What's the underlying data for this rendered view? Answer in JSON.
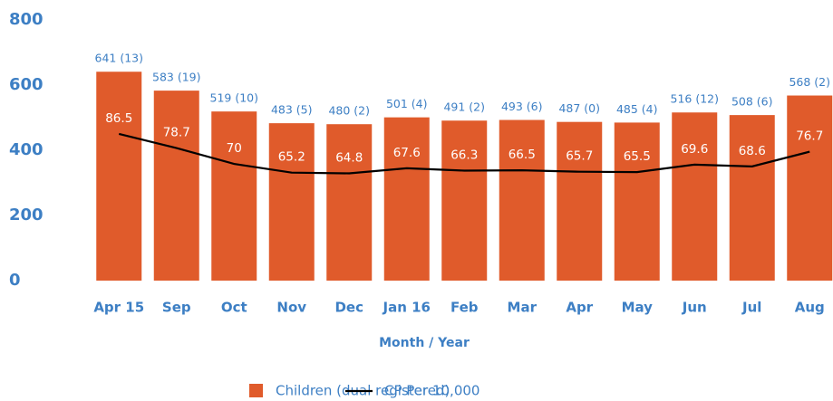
{
  "chart_data": {
    "type": "bar",
    "x_label": "Month / Year",
    "categories": [
      "Apr 15",
      "Sep",
      "Oct",
      "Nov",
      "Dec",
      "Jan 16",
      "Feb",
      "Mar",
      "Apr",
      "May",
      "Jun",
      "Jul",
      "Aug"
    ],
    "series": [
      {
        "name": "Children (dual registered)",
        "type": "bar",
        "color": "#e05b2b",
        "values": [
          641,
          583,
          519,
          483,
          480,
          501,
          491,
          493,
          487,
          485,
          516,
          508,
          568
        ],
        "value_labels": [
          "641 (13)",
          "583 (19)",
          "519 (10)",
          "483 (5)",
          "480 (2)",
          "501 (4)",
          "491 (2)",
          "493 (6)",
          "487 (0)",
          "485 (4)",
          "516 (12)",
          "508 (6)",
          "568 (2)"
        ]
      },
      {
        "name": "CP Per 10,000",
        "type": "line",
        "color": "#000000",
        "axis": "y2",
        "values": [
          86.5,
          78.7,
          70,
          65.2,
          64.8,
          67.6,
          66.3,
          66.5,
          65.7,
          65.5,
          69.6,
          68.6,
          76.7
        ]
      }
    ],
    "ylim": [
      0,
      800
    ],
    "yticks": [
      0,
      200,
      400,
      600,
      800
    ],
    "y2lim": [
      5.8,
      149.2
    ],
    "legend": "bottom"
  }
}
